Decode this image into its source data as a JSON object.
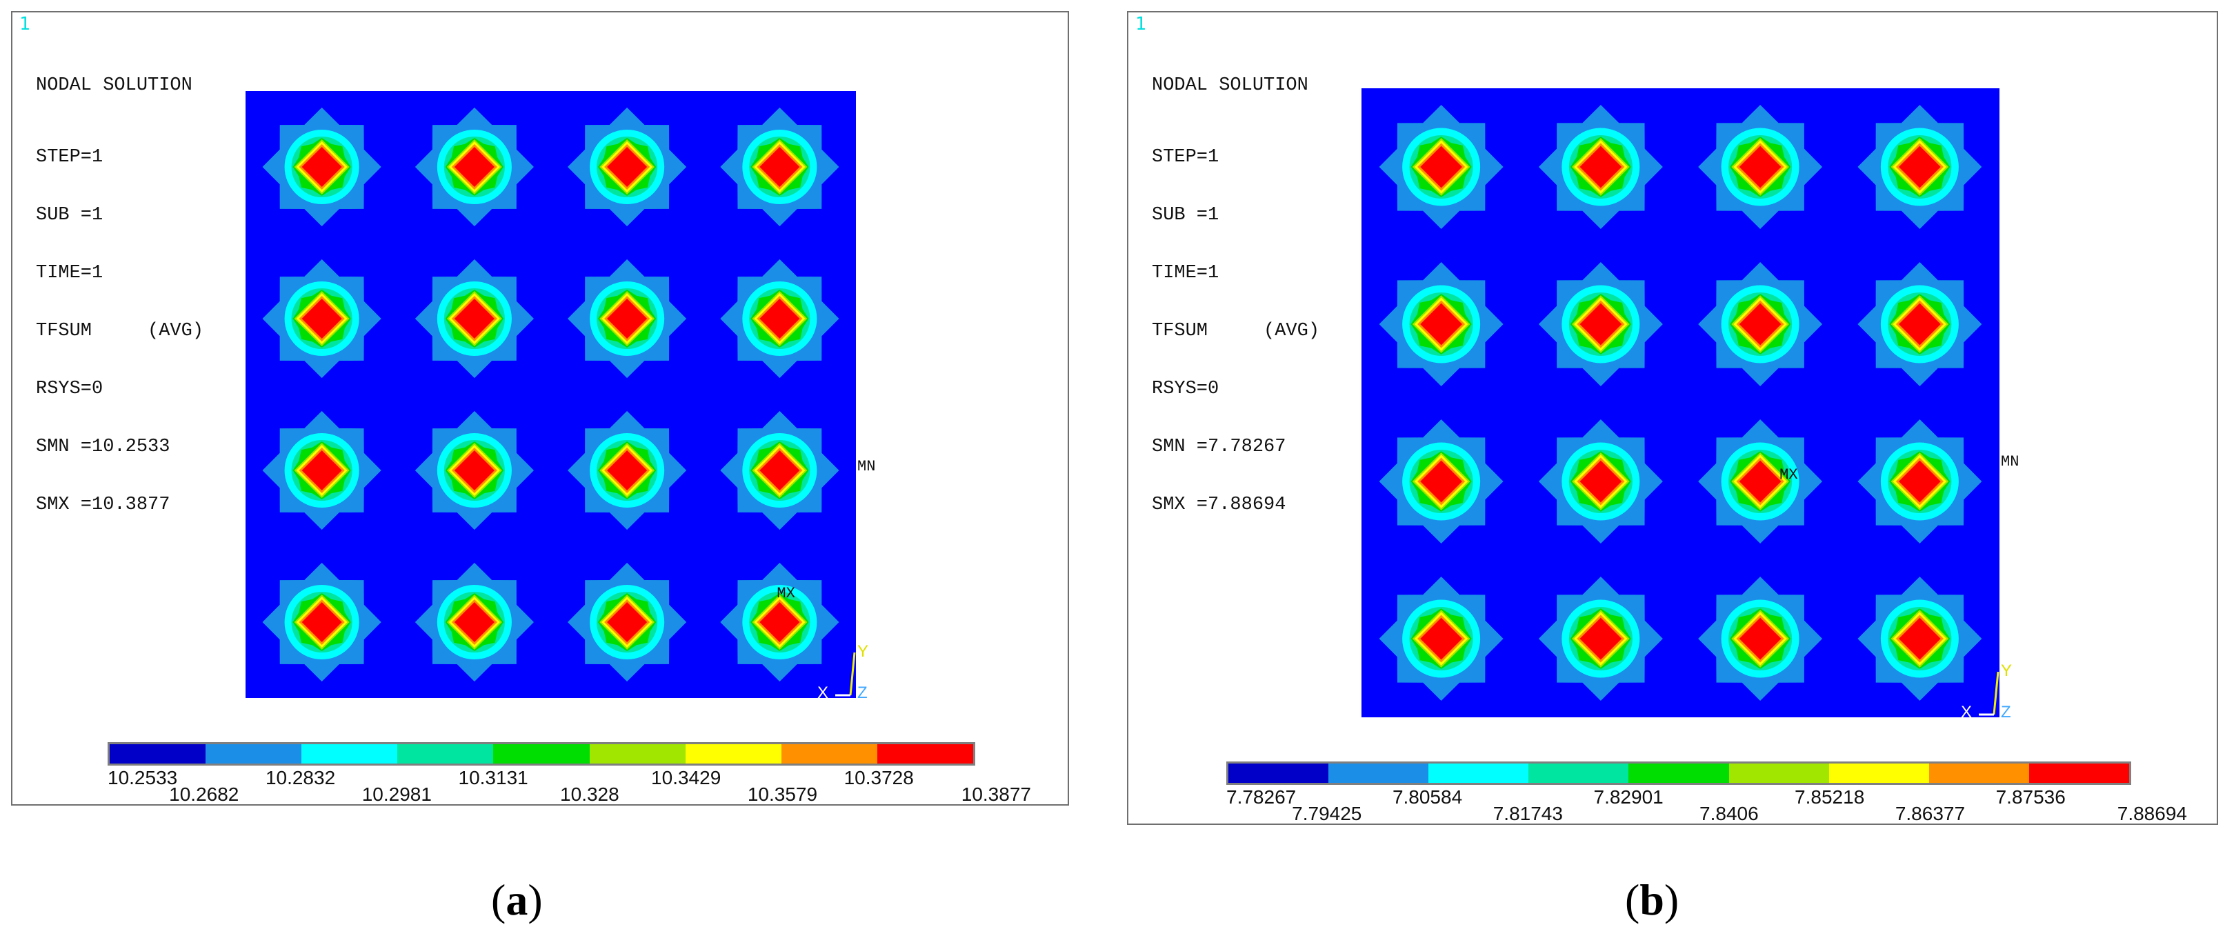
{
  "panels": [
    {
      "number": "1",
      "header": {
        "title": "NODAL SOLUTION",
        "lines": [
          "STEP=1",
          "SUB =1",
          "TIME=1",
          "TFSUM     (AVG)",
          "RSYS=0",
          "SMN =10.2533",
          "SMX =10.3877"
        ]
      },
      "markers": {
        "mn": "MN",
        "mx": "MX"
      },
      "axes": {
        "x": "X",
        "y": "Y",
        "z": "Z"
      },
      "legend": [
        "10.2533",
        "10.2682",
        "10.2832",
        "10.2981",
        "10.3131",
        "10.328",
        "10.3429",
        "10.3579",
        "10.3728",
        "10.3877"
      ],
      "caption": "a"
    },
    {
      "number": "1",
      "header": {
        "title": "NODAL SOLUTION",
        "lines": [
          "STEP=1",
          "SUB =1",
          "TIME=1",
          "TFSUM     (AVG)",
          "RSYS=0",
          "SMN =7.78267",
          "SMX =7.88694"
        ]
      },
      "markers": {
        "mn": "MN",
        "mx": "MX"
      },
      "axes": {
        "x": "X",
        "y": "Y",
        "z": "Z"
      },
      "legend": [
        "7.78267",
        "7.79425",
        "7.80584",
        "7.81743",
        "7.82901",
        "7.8406",
        "7.85218",
        "7.86377",
        "7.87536",
        "7.88694"
      ],
      "caption": "b"
    }
  ],
  "colors": {
    "background_field": "#0000ff",
    "contour_bands": [
      "#0000c8",
      "#1b8ee8",
      "#00ffff",
      "#00e6a0",
      "#00dd00",
      "#a0e600",
      "#ffff00",
      "#ff9000",
      "#ff0000"
    ]
  },
  "grid": {
    "rows": 4,
    "cols": 4
  }
}
